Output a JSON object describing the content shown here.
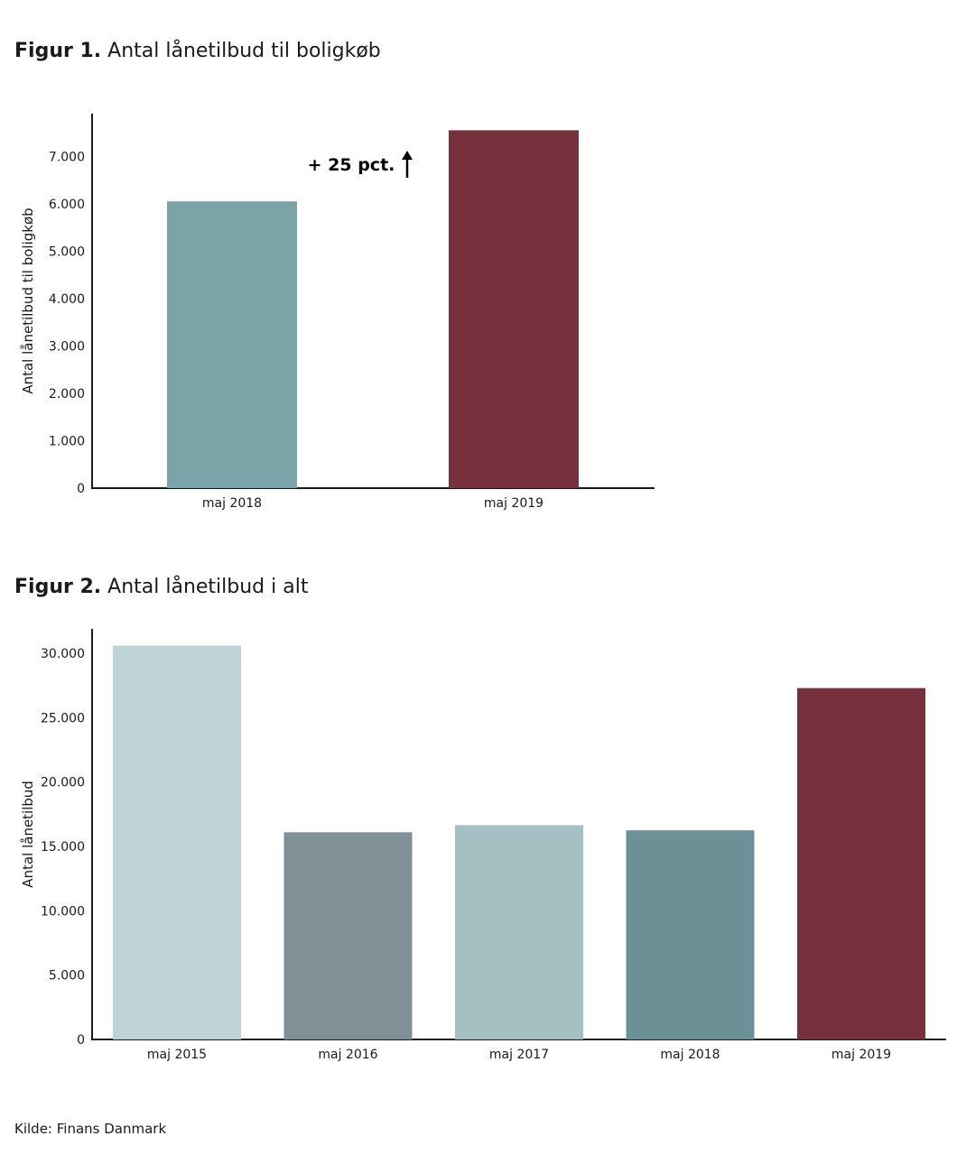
{
  "figures": [
    {
      "lead": "Figur 1.",
      "rest": " Antal lånetilbud til boligkøb"
    },
    {
      "lead": "Figur 2.",
      "rest": " Antal lånetilbud i alt"
    }
  ],
  "source": "Kilde: Finans Danmark",
  "chart_data": [
    {
      "type": "bar",
      "categories": [
        "maj 2018",
        "maj 2019"
      ],
      "values": [
        6050,
        7550
      ],
      "colors": [
        "#7ba4a8",
        "#76313d"
      ],
      "ylabel": "Antal lånetilbud til boligkøb",
      "ylim": [
        0,
        7900
      ],
      "yticks": [
        0,
        1000,
        2000,
        3000,
        4000,
        5000,
        6000,
        7000
      ],
      "ytick_labels": [
        "0",
        "1.000",
        "2.000",
        "3.000",
        "4.000",
        "5.000",
        "6.000",
        "7.000"
      ],
      "annotation": "+ 25 pct.",
      "grid": false,
      "legend": "none"
    },
    {
      "type": "bar",
      "categories": [
        "maj 2015",
        "maj 2016",
        "maj 2017",
        "maj 2018",
        "maj 2019"
      ],
      "values": [
        30600,
        16100,
        16650,
        16250,
        27300
      ],
      "colors": [
        "#bed3d5",
        "#7f9196",
        "#a5c0c3",
        "#6b9197",
        "#76313d"
      ],
      "ylabel": "Antal lånetilbud",
      "ylim": [
        0,
        31900
      ],
      "yticks": [
        0,
        5000,
        10000,
        15000,
        20000,
        25000,
        30000
      ],
      "ytick_labels": [
        "0",
        "5.000",
        "10.000",
        "15.000",
        "20.000",
        "25.000",
        "30.000"
      ],
      "grid": false,
      "legend": "none"
    }
  ]
}
